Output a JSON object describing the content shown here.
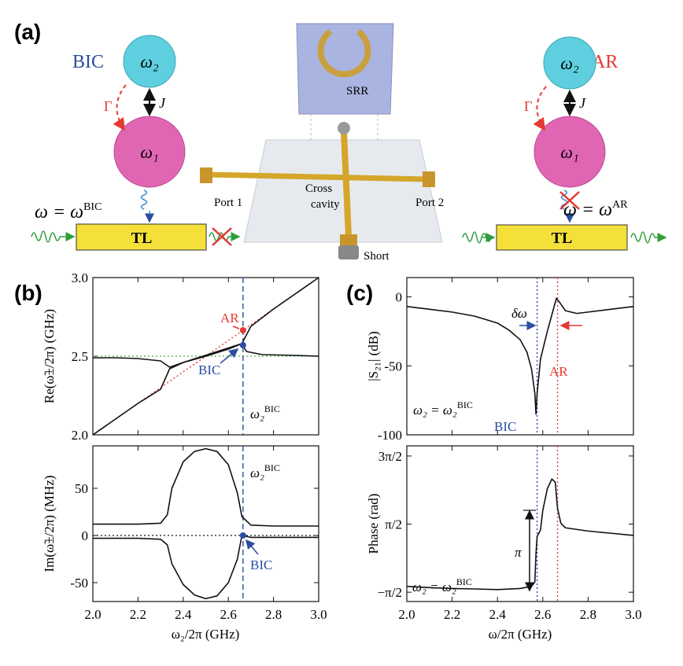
{
  "panel_a": {
    "label": "(a)",
    "left": {
      "mode": "BIC",
      "omega2": "ω₂",
      "omega1": "ω₁",
      "gamma": "Γ",
      "coupling": "J",
      "condition": {
        "base": "ω = ω",
        "sup": "BIC"
      },
      "line": "TL"
    },
    "center": {
      "srr": "SRR",
      "port1": "Port 1",
      "port2": "Port 2",
      "cross": "Cross",
      "cavity": "cavity",
      "short": "Short"
    },
    "right": {
      "mode": "AR",
      "omega2": "ω₂",
      "omega1": "ω₁",
      "gamma": "Γ",
      "coupling": "J",
      "condition": {
        "base": "ω = ω",
        "sup": "AR"
      },
      "line": "TL"
    }
  },
  "panel_b_label": "(b)",
  "panel_c_label": "(c)",
  "chart_data": [
    {
      "type": "line",
      "ylabel": "Re(ω̃±/2π) (GHz)",
      "xlim": [
        2.0,
        3.0
      ],
      "ylim": [
        2.0,
        3.0
      ],
      "xticks": [
        2.0,
        2.2,
        2.4,
        2.6,
        2.8,
        3.0
      ],
      "show_xtick_labels": false,
      "yticks": [
        {
          "value": 2.0,
          "label": "2.0"
        },
        2.5,
        {
          "value": 3.0,
          "label": "3.0"
        }
      ],
      "series": [
        {
          "color": "#111111",
          "x": [
            2.0,
            2.1,
            2.2,
            2.3,
            2.34,
            2.4,
            2.5,
            2.6,
            2.66,
            2.7,
            2.8,
            2.9,
            3.0
          ],
          "values": [
            2.0,
            2.1,
            2.2,
            2.29,
            2.42,
            2.46,
            2.5,
            2.545,
            2.58,
            2.69,
            2.8,
            2.9,
            3.0
          ]
        },
        {
          "color": "#111111",
          "x": [
            2.0,
            2.1,
            2.2,
            2.3,
            2.34,
            2.4,
            2.66,
            2.68,
            2.75,
            2.9,
            3.0
          ],
          "values": [
            2.49,
            2.49,
            2.485,
            2.47,
            2.43,
            2.46,
            2.58,
            2.53,
            2.51,
            2.505,
            2.5
          ]
        }
      ],
      "hlines": [
        {
          "value": 2.5,
          "color": "#4caf50",
          "style": "dotted"
        }
      ],
      "vlines": [
        {
          "value": 2.665,
          "color": "#2a4ea0",
          "style": "dashed"
        }
      ],
      "diagonals": [
        {
          "x": [
            2.0,
            3.0
          ],
          "values": [
            2.0,
            3.0
          ],
          "color": "#e53935",
          "style": "dotted"
        }
      ],
      "markers": [
        {
          "x": 2.665,
          "y": 2.665,
          "color": "#e53935"
        },
        {
          "x": 2.665,
          "y": 2.57,
          "color": "#2a4ea0"
        }
      ],
      "annotations": {
        "ar": "AR",
        "bic": "BIC",
        "condition": {
          "base": "ω₂",
          "sup": "BIC"
        }
      }
    },
    {
      "type": "line",
      "ylabel": "Im(ω̃±/2π) (MHz)",
      "xlabel": "ω₂/2π (GHz)",
      "xlim": [
        2.0,
        3.0
      ],
      "ylim": [
        -70,
        95
      ],
      "xticks": [
        {
          "value": 2.0,
          "label": "2.0"
        },
        2.2,
        2.4,
        2.6,
        2.8,
        {
          "value": 3.0,
          "label": "3.0"
        }
      ],
      "show_xtick_labels": true,
      "yticks": [
        -50,
        0,
        50
      ],
      "series": [
        {
          "color": "#111111",
          "x": [
            2.0,
            2.2,
            2.3,
            2.33,
            2.35,
            2.4,
            2.45,
            2.5,
            2.55,
            2.6,
            2.64,
            2.66,
            2.7,
            2.8,
            3.0
          ],
          "values": [
            12,
            12,
            13,
            22,
            50,
            78,
            89,
            92,
            89,
            75,
            45,
            20,
            11,
            10,
            10
          ]
        },
        {
          "color": "#111111",
          "x": [
            2.0,
            2.2,
            2.3,
            2.33,
            2.35,
            2.4,
            2.45,
            2.5,
            2.55,
            2.6,
            2.64,
            2.66,
            2.7,
            2.8,
            3.0
          ],
          "values": [
            -3,
            -3,
            -4,
            -10,
            -30,
            -52,
            -63,
            -67,
            -64,
            -50,
            -25,
            0,
            -2,
            -2,
            -2
          ]
        }
      ],
      "hlines": [
        {
          "value": 0,
          "color": "#111111",
          "style": "dotted"
        }
      ],
      "vlines": [
        {
          "value": 2.665,
          "color": "#2a4ea0",
          "style": "dashed"
        }
      ],
      "markers": [
        {
          "x": 2.665,
          "y": 0,
          "color": "#2a4ea0"
        }
      ],
      "annotations": {
        "bic": "BIC",
        "condition": {
          "base": "ω₂",
          "sup": "BIC"
        }
      }
    },
    {
      "type": "line",
      "ylabel": "|S₂₁| (dB)",
      "xlim": [
        2.0,
        3.0
      ],
      "ylim": [
        -100,
        14
      ],
      "xticks": [
        2.0,
        2.2,
        2.4,
        2.6,
        2.8,
        3.0
      ],
      "show_xtick_labels": false,
      "yticks": [
        -100,
        -50,
        0
      ],
      "series": [
        {
          "color": "#111111",
          "x": [
            2.0,
            2.1,
            2.2,
            2.3,
            2.4,
            2.45,
            2.5,
            2.53,
            2.55,
            2.565,
            2.57,
            2.575,
            2.59,
            2.62,
            2.645,
            2.66,
            2.67,
            2.7,
            2.75,
            2.8,
            2.9,
            3.0
          ],
          "values": [
            -7,
            -9,
            -11,
            -14,
            -19,
            -24,
            -31,
            -40,
            -52,
            -70,
            -85,
            -70,
            -45,
            -25,
            -10,
            -1,
            -3,
            -10,
            -12,
            -11,
            -9,
            -7
          ]
        }
      ],
      "vlines": [
        {
          "value": 2.575,
          "color": "#2a4ea0",
          "style": "dotted"
        },
        {
          "value": 2.665,
          "color": "#e53935",
          "style": "dotted"
        }
      ],
      "annotations": {
        "delta": "δω",
        "ar": "AR",
        "bic": "BIC",
        "condition": {
          "base": "ω₂ = ω₂",
          "sup": "BIC"
        }
      }
    },
    {
      "type": "line",
      "ylabel": "Phase (rad)",
      "xlabel": "ω/2π (GHz)",
      "xlim": [
        2.0,
        3.0
      ],
      "ylim": [
        -2.0,
        5.18
      ],
      "xticks": [
        {
          "value": 2.0,
          "label": "2.0"
        },
        2.2,
        2.4,
        2.6,
        2.8,
        {
          "value": 3.0,
          "label": "3.0"
        }
      ],
      "show_xtick_labels": true,
      "yticks": [
        {
          "value": -1.571,
          "label": "−π/2"
        },
        {
          "value": 1.571,
          "label": "π/2"
        },
        {
          "value": 4.712,
          "label": "3π/2"
        }
      ],
      "series": [
        {
          "color": "#111111",
          "x": [
            2.0,
            2.1,
            2.2,
            2.3,
            2.4,
            2.5,
            2.55,
            2.565,
            2.57,
            2.575,
            2.59,
            2.6,
            2.62,
            2.64,
            2.655,
            2.665,
            2.68,
            2.7,
            2.8,
            2.9,
            3.0
          ],
          "values": [
            -1.3,
            -1.36,
            -1.4,
            -1.42,
            -1.45,
            -1.4,
            -1.3,
            -1.1,
            0.2,
            1.0,
            1.3,
            2.2,
            3.2,
            3.65,
            3.5,
            2.3,
            1.6,
            1.4,
            1.25,
            1.15,
            1.05
          ]
        }
      ],
      "vlines": [
        {
          "value": 2.575,
          "color": "#2a4ea0",
          "style": "dotted"
        },
        {
          "value": 2.665,
          "color": "#e53935",
          "style": "dotted"
        }
      ],
      "annotations": {
        "pi": "π",
        "condition": {
          "base": "ω₂ = ω₂",
          "sup": "BIC"
        }
      }
    }
  ]
}
